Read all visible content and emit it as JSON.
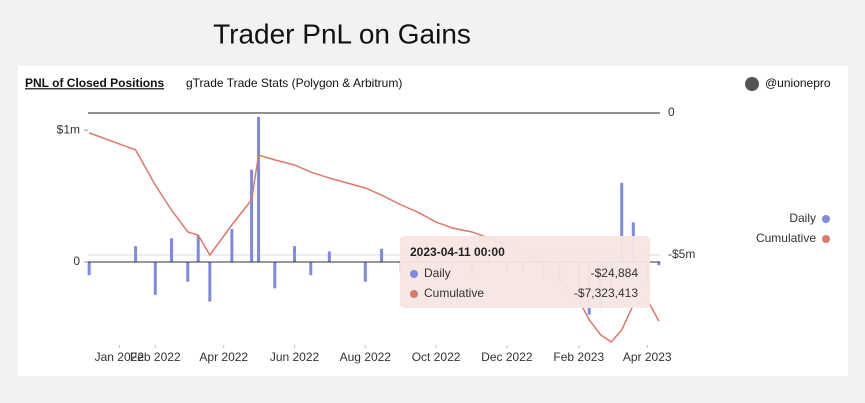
{
  "title": "Trader PnL on Gains",
  "header": {
    "panel_title": "PNL of Closed Positions",
    "panel_subtitle": "gTrade Trade Stats (Polygon & Arbitrum)",
    "author": "@unionepro"
  },
  "chart_data": {
    "type": "bar-line",
    "x": [
      "2021-12-06",
      "2022-01-15",
      "2022-02-01",
      "2022-02-15",
      "2022-03-01",
      "2022-03-10",
      "2022-03-20",
      "2022-04-08",
      "2022-04-25",
      "2022-05-01",
      "2022-05-15",
      "2022-06-01",
      "2022-06-15",
      "2022-07-01",
      "2022-08-01",
      "2022-08-15",
      "2022-09-01",
      "2022-09-15",
      "2022-10-01",
      "2022-10-15",
      "2022-11-01",
      "2022-11-15",
      "2022-12-01",
      "2022-12-15",
      "2023-01-01",
      "2023-01-15",
      "2023-02-01",
      "2023-02-10",
      "2023-02-20",
      "2023-03-01",
      "2023-03-10",
      "2023-03-20",
      "2023-04-01",
      "2023-04-11"
    ],
    "series": [
      {
        "name": "Daily",
        "color": "#7f89e2",
        "type": "bar",
        "values": [
          -100000,
          120000,
          -250000,
          180000,
          -150000,
          200000,
          -300000,
          250000,
          700000,
          1100000,
          -200000,
          120000,
          -100000,
          80000,
          -150000,
          100000,
          -80000,
          60000,
          -120000,
          -50000,
          -90000,
          40000,
          -60000,
          -70000,
          -120000,
          -150000,
          -200000,
          -400000,
          -350000,
          -250000,
          600000,
          300000,
          -150000,
          -24884
        ]
      },
      {
        "name": "Cumulative",
        "color": "#d9796c",
        "type": "line",
        "axis": "y2",
        "values": [
          -700000,
          -1300000,
          -2540000,
          -3420000,
          -4190000,
          -4300000,
          -5000000,
          -3940000,
          -3060000,
          -1480000,
          -1650000,
          -1830000,
          -2080000,
          -2290000,
          -2640000,
          -2890000,
          -3240000,
          -3490000,
          -3840000,
          -4050000,
          -4190000,
          -4400000,
          -4650000,
          -4890000,
          -5350000,
          -5880000,
          -6580000,
          -7290000,
          -7820000,
          -8060000,
          -7640000,
          -6760000,
          -6580000,
          -7323413
        ]
      }
    ],
    "xlim": [
      "2021-12-05",
      "2023-04-12"
    ],
    "xticks": [
      {
        "value": "2022-01-01",
        "label": "Jan 2022"
      },
      {
        "value": "2022-02-01",
        "label": "Feb 2022"
      },
      {
        "value": "2022-04-01",
        "label": "Apr 2022"
      },
      {
        "value": "2022-06-01",
        "label": "Jun 2022"
      },
      {
        "value": "2022-08-01",
        "label": "Aug 2022"
      },
      {
        "value": "2022-10-01",
        "label": "Oct 2022"
      },
      {
        "value": "2022-12-01",
        "label": "Dec 2022"
      },
      {
        "value": "2023-02-01",
        "label": "Feb 2023"
      },
      {
        "value": "2023-04-01",
        "label": "Apr 2023"
      }
    ],
    "ylim": [
      -630000,
      1130000
    ],
    "yticks": [
      0,
      {
        "value": 1000000,
        "label": "$1m"
      }
    ],
    "y2lim": [
      -8170000,
      0
    ],
    "y2ticks": [
      0,
      {
        "value": -5000000,
        "label": "-$5m"
      }
    ],
    "tooltip": {
      "date": "2023-04-11 00:00",
      "values": [
        -24884,
        -7323413
      ],
      "value_labels": [
        "-$24,884",
        "-$7,323,413"
      ]
    }
  }
}
